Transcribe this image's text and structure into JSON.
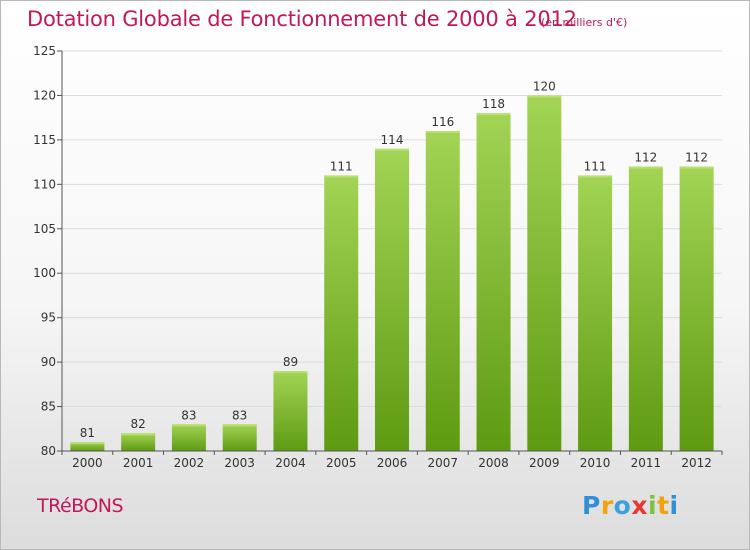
{
  "header": {
    "title": "Dotation Globale de Fonctionnement de 2000 à 2012",
    "unit": "(en milliers d'€)"
  },
  "footer": {
    "commune": "TRéBONS",
    "logo_letters": [
      "P",
      "r",
      "o",
      "x",
      "i",
      "t",
      "i"
    ]
  },
  "colors": {
    "title": "#c2185b",
    "bar_light": "#9fd14f",
    "bar_dark": "#5e9a12",
    "axis": "#555555",
    "grid": "#d9d9d9"
  },
  "chart_data": {
    "type": "bar",
    "title": "Dotation Globale de Fonctionnement de 2000 à 2012",
    "xlabel": "",
    "ylabel": "",
    "categories": [
      "2000",
      "2001",
      "2002",
      "2003",
      "2004",
      "2005",
      "2006",
      "2007",
      "2008",
      "2009",
      "2010",
      "2011",
      "2012"
    ],
    "values": [
      81,
      82,
      83,
      83,
      89,
      111,
      114,
      116,
      118,
      120,
      111,
      112,
      112
    ],
    "ylim": [
      80,
      125
    ],
    "yticks": [
      80,
      85,
      90,
      95,
      100,
      105,
      110,
      115,
      120,
      125
    ],
    "grid": true,
    "data_labels": true,
    "legend": "none"
  }
}
